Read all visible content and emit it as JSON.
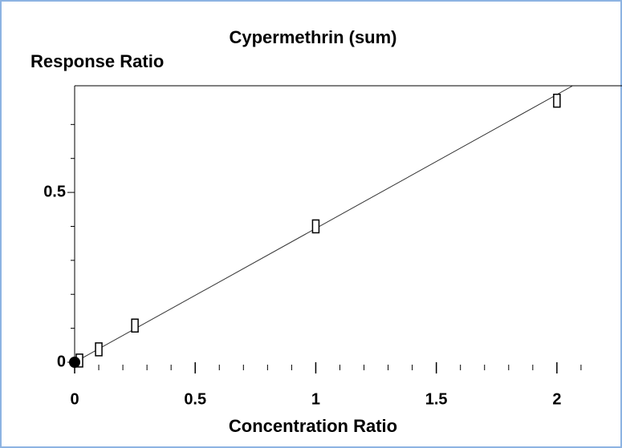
{
  "chart_data": {
    "type": "scatter",
    "title": "Cypermethrin (sum)",
    "y_label": "Response Ratio",
    "x_label": "Concentration Ratio",
    "xlim": [
      0,
      2.27
    ],
    "ylim": [
      0,
      0.814
    ],
    "xticks": [
      0,
      0.5,
      1,
      1.5,
      2
    ],
    "yticks": [
      0,
      0.5
    ],
    "x_minor_ticks": [
      0.1,
      0.2,
      0.3,
      0.4,
      0.6,
      0.7,
      0.8,
      0.9,
      1.1,
      1.2,
      1.3,
      1.4,
      1.6,
      1.7,
      1.8,
      1.9,
      2.1
    ],
    "y_minor_ticks": [
      0.1,
      0.2,
      0.3,
      0.4,
      0.6,
      0.7
    ],
    "points": {
      "x": [
        0.02,
        0.1,
        0.25,
        1,
        2
      ],
      "values": [
        0.005,
        0.038,
        0.108,
        0.4,
        0.77
      ],
      "marker": "square",
      "color": "#000000"
    },
    "origin_point": {
      "x": [
        0
      ],
      "values": [
        0
      ],
      "marker": "circle",
      "color": "#000000"
    },
    "fit_line": {
      "x": [
        0,
        2.066
      ],
      "values": [
        0,
        0.814
      ],
      "color": "#333333"
    }
  }
}
